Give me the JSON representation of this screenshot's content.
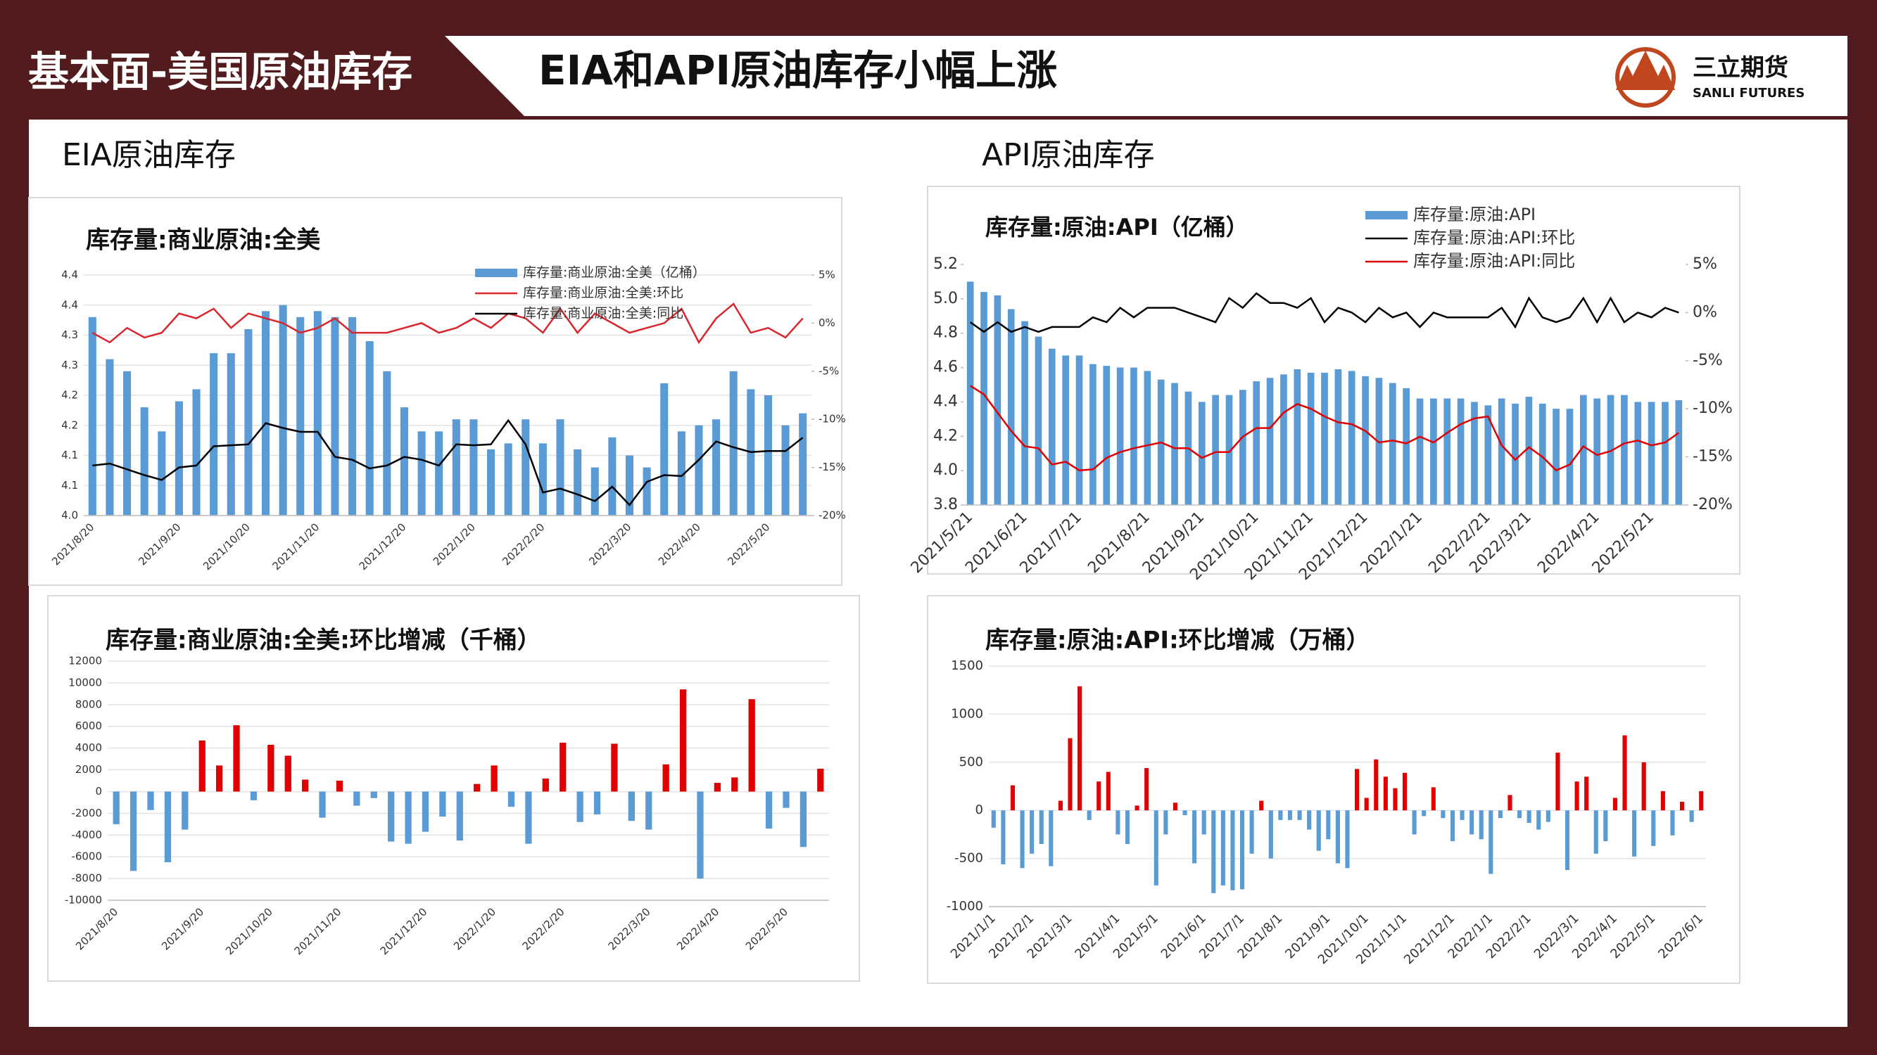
{
  "header": {
    "section": "基本面-美国原油库存",
    "title": "EIA和API原油库存小幅上涨",
    "logo_cn": "三立期货",
    "logo_en": "SANLI FUTURES"
  },
  "panels": [
    "EIA原油库存",
    "API原油库存"
  ],
  "chart_data": [
    {
      "type": "combo",
      "title": "库存量:商业原油:全美",
      "grid": true,
      "legend": "top-right",
      "categories": [
        "2021/8/20",
        null,
        null,
        null,
        null,
        "2021/9/20",
        null,
        null,
        null,
        "2021/10/20",
        null,
        null,
        null,
        "2021/11/20",
        null,
        null,
        null,
        null,
        "2021/12/20",
        null,
        null,
        null,
        "2022/1/20",
        null,
        null,
        null,
        "2022/2/20",
        null,
        null,
        null,
        null,
        "2022/3/20",
        null,
        null,
        null,
        "2022/4/20",
        null,
        null,
        null,
        "2022/5/20",
        null,
        null
      ],
      "ylim": [
        4.0,
        4.4
      ],
      "yticks": [
        {
          "value": 4,
          "label": "4.0"
        },
        {
          "value": 4.05,
          "label": "4.1"
        },
        4.1,
        {
          "value": 4.15,
          "label": "4.2"
        },
        4.2,
        {
          "value": 4.25,
          "label": "4.3"
        },
        4.3,
        {
          "value": 4.35,
          "label": "4.4"
        },
        4.4
      ],
      "y2lim": [
        -20,
        5
      ],
      "y2ticks": [
        {
          "value": 5,
          "label": "5%"
        },
        {
          "value": 0,
          "label": "0%"
        },
        {
          "value": -5,
          "label": "-5%"
        },
        {
          "value": -10,
          "label": "-10%"
        },
        {
          "value": -15,
          "label": "-15%"
        },
        {
          "value": -20,
          "label": "-20%"
        }
      ],
      "series": [
        {
          "name": "库存量:商业原油:全美（亿桶）",
          "type": "bar",
          "color": "#5b9bd5",
          "values": [
            4.33,
            4.26,
            4.24,
            4.18,
            4.14,
            4.19,
            4.21,
            4.27,
            4.27,
            4.31,
            4.34,
            4.35,
            4.33,
            4.34,
            4.33,
            4.33,
            4.29,
            4.24,
            4.18,
            4.14,
            4.14,
            4.16,
            4.16,
            4.11,
            4.12,
            4.16,
            4.12,
            4.16,
            4.11,
            4.08,
            4.13,
            4.1,
            4.08,
            4.22,
            4.14,
            4.15,
            4.16,
            4.24,
            4.21,
            4.2,
            4.15,
            4.17
          ]
        },
        {
          "name": "库存量:商业原油:全美:环比",
          "type": "line",
          "axis": "y2",
          "color": "#d9262c",
          "values": [
            -1,
            -2,
            -0.5,
            -1.5,
            -1,
            1,
            0.5,
            1.5,
            -0.5,
            1,
            0.5,
            0,
            -1,
            -0.5,
            0.5,
            -1,
            -1,
            -1,
            -0.5,
            0,
            -1,
            -0.5,
            0.5,
            -0.5,
            1,
            0.5,
            -1,
            1.5,
            -1,
            1,
            0,
            -1,
            -0.5,
            0,
            1.5,
            -2,
            0.5,
            2,
            -1,
            -0.5,
            -1.5,
            0.5
          ]
        },
        {
          "name": "库存量:商业原油:全美:同比",
          "type": "line",
          "axis": "y2",
          "color": "#000000",
          "values": [
            -14.8,
            -14.6,
            -15.2,
            -15.8,
            -16.3,
            -15,
            -14.8,
            -12.8,
            -12.7,
            -12.6,
            -10.4,
            -10.9,
            -11.3,
            -11.3,
            -13.9,
            -14.2,
            -15.1,
            -14.8,
            -13.9,
            -14.2,
            -14.8,
            -12.6,
            -12.7,
            -12.6,
            -10.1,
            -12.6,
            -17.6,
            -17.2,
            -17.8,
            -18.5,
            -17,
            -18.9,
            -16.5,
            -15.8,
            -15.9,
            -14.2,
            -12.3,
            -12.9,
            -13.4,
            -13.3,
            -13.3,
            -11.9
          ]
        }
      ]
    },
    {
      "type": "combo",
      "title": "库存量:原油:API（亿桶）",
      "grid": false,
      "legend": "top-right",
      "categories": [
        "2021/5/21",
        null,
        null,
        null,
        "2021/6/21",
        null,
        null,
        null,
        "2021/7/21",
        null,
        null,
        null,
        null,
        "2021/8/21",
        null,
        null,
        null,
        "2021/9/21",
        null,
        null,
        null,
        "2021/10/21",
        null,
        null,
        null,
        "2021/11/21",
        null,
        null,
        null,
        "2021/12/21",
        null,
        null,
        null,
        "2022/1/21",
        null,
        null,
        null,
        null,
        "2022/2/21",
        null,
        null,
        "2022/3/21",
        null,
        null,
        null,
        null,
        "2022/4/21",
        null,
        null,
        null,
        "2022/5/21",
        null,
        null
      ],
      "ylim": [
        3.8,
        5.2
      ],
      "yticks": [
        3.8,
        {
          "value": 4,
          "label": "4.0"
        },
        4.2,
        4.4,
        4.6,
        4.8,
        {
          "value": 5,
          "label": "5.0"
        },
        5.2
      ],
      "y2lim": [
        -20,
        5
      ],
      "y2ticks": [
        {
          "value": 5,
          "label": "5%"
        },
        {
          "value": 0,
          "label": "0%"
        },
        {
          "value": -5,
          "label": "-5%"
        },
        {
          "value": -10,
          "label": "-10%"
        },
        {
          "value": -15,
          "label": "-15%"
        },
        {
          "value": -20,
          "label": "-20%"
        }
      ],
      "series": [
        {
          "name": "库存量:原油:API",
          "type": "bar",
          "color": "#5b9bd5",
          "values": [
            5.1,
            5.04,
            5.02,
            4.94,
            4.87,
            4.78,
            4.71,
            4.67,
            4.67,
            4.62,
            4.61,
            4.6,
            4.6,
            4.58,
            4.53,
            4.51,
            4.46,
            4.4,
            4.44,
            4.44,
            4.47,
            4.52,
            4.54,
            4.56,
            4.59,
            4.57,
            4.57,
            4.59,
            4.58,
            4.55,
            4.54,
            4.51,
            4.48,
            4.42,
            4.42,
            4.42,
            4.42,
            4.4,
            4.38,
            4.42,
            4.39,
            4.43,
            4.39,
            4.36,
            4.36,
            4.44,
            4.42,
            4.44,
            4.44,
            4.4,
            4.4,
            4.4,
            4.41
          ]
        },
        {
          "name": "库存量:原油:API:环比",
          "type": "line",
          "axis": "y2",
          "color": "#000000",
          "values": [
            -1,
            -2,
            -1,
            -2,
            -1.5,
            -2,
            -1.5,
            -1.5,
            -1.5,
            -0.5,
            -1,
            0.5,
            -0.5,
            0.5,
            0.5,
            0.5,
            0,
            -0.5,
            -1,
            1.5,
            0.5,
            2,
            1,
            1,
            0.5,
            1.5,
            -1,
            0.5,
            0,
            -1,
            0.5,
            -0.5,
            0,
            -1.5,
            0,
            -0.5,
            -0.5,
            -0.5,
            -0.5,
            0.5,
            -1.5,
            1.5,
            -0.5,
            -1,
            -0.5,
            1.5,
            -1,
            1.5,
            -1,
            0,
            -0.5,
            0.5,
            0
          ]
        },
        {
          "name": "库存量:原油:API:同比",
          "type": "line",
          "axis": "y2",
          "color": "#e00000",
          "values": [
            -7.6,
            -8.5,
            -10.4,
            -12.3,
            -13.9,
            -14.1,
            -15.8,
            -15.5,
            -16.4,
            -16.3,
            -15.1,
            -14.5,
            -14.1,
            -13.8,
            -13.5,
            -14.1,
            -14.1,
            -15.1,
            -14.5,
            -14.5,
            -12.9,
            -12,
            -12,
            -10.4,
            -9.5,
            -10,
            -10.8,
            -11.4,
            -11.6,
            -12.3,
            -13.5,
            -13.3,
            -13.6,
            -12.9,
            -13.5,
            -12.5,
            -11.6,
            -11,
            -10.8,
            -13.8,
            -15.3,
            -14,
            -15,
            -16.4,
            -15.8,
            -13.9,
            -14.8,
            -14.4,
            -13.6,
            -13.3,
            -13.8,
            -13.5,
            -12.5
          ]
        }
      ]
    },
    {
      "type": "bar",
      "title": "库存量:商业原油:全美:环比增减（千桶）",
      "grid": true,
      "positive_color": "#e00000",
      "negative_color": "#5b9bd5",
      "categories": [
        "2021/8/20",
        null,
        null,
        null,
        null,
        "2021/9/20",
        null,
        null,
        null,
        "2021/10/20",
        null,
        null,
        null,
        "2021/11/20",
        null,
        null,
        null,
        null,
        "2021/12/20",
        null,
        null,
        null,
        "2022/1/20",
        null,
        null,
        null,
        "2022/2/20",
        null,
        null,
        null,
        null,
        "2022/3/20",
        null,
        null,
        null,
        "2022/4/20",
        null,
        null,
        null,
        "2022/5/20",
        null,
        null
      ],
      "ylim": [
        -10000,
        12000
      ],
      "yticks": [
        -10000,
        -8000,
        -6000,
        -4000,
        -2000,
        0,
        2000,
        4000,
        6000,
        8000,
        10000,
        12000
      ],
      "values": [
        -3000,
        -7300,
        -1700,
        -6500,
        -3500,
        4700,
        2400,
        6100,
        -800,
        4300,
        3300,
        1100,
        -2400,
        1000,
        -1300,
        -600,
        -4600,
        -4800,
        -3700,
        -2300,
        -4500,
        700,
        2400,
        -1400,
        -4800,
        1200,
        4500,
        -2800,
        -2100,
        4400,
        -2700,
        -3500,
        2500,
        9400,
        -8000,
        800,
        1300,
        8500,
        -3400,
        -1500,
        -5100,
        2100
      ]
    },
    {
      "type": "bar",
      "title": "库存量:原油:API:环比增减（万桶）",
      "grid": true,
      "positive_color": "#e00000",
      "negative_color": "#5b9bd5",
      "categories": [
        "2021/1/1",
        null,
        null,
        null,
        "2021/2/1",
        null,
        null,
        null,
        "2021/3/1",
        null,
        null,
        null,
        null,
        "2021/4/1",
        null,
        null,
        null,
        "2021/5/1",
        null,
        null,
        null,
        null,
        "2021/6/1",
        null,
        null,
        null,
        "2021/7/1",
        null,
        null,
        null,
        "2021/8/1",
        null,
        null,
        null,
        null,
        "2021/9/1",
        null,
        null,
        null,
        "2021/10/1",
        null,
        null,
        null,
        "2021/11/1",
        null,
        null,
        null,
        null,
        "2021/12/1",
        null,
        null,
        null,
        "2022/1/1",
        null,
        null,
        null,
        "2022/2/1",
        null,
        null,
        null,
        null,
        "2022/3/1",
        null,
        null,
        null,
        "2022/4/1",
        null,
        null,
        null,
        "2022/5/1",
        null,
        null,
        null,
        null,
        "2022/6/1"
      ],
      "ylim": [
        -1000,
        1500
      ],
      "yticks": [
        -1000,
        -500,
        0,
        500,
        1000,
        1500
      ],
      "values": [
        -180,
        -560,
        260,
        -600,
        -450,
        -350,
        -580,
        100,
        750,
        1290,
        -100,
        300,
        400,
        -250,
        -350,
        50,
        440,
        -780,
        -250,
        80,
        -50,
        -550,
        -250,
        -860,
        -780,
        -830,
        -820,
        -450,
        100,
        -500,
        -100,
        -100,
        -100,
        -200,
        -420,
        -300,
        -550,
        -600,
        430,
        130,
        530,
        350,
        230,
        390,
        -250,
        -60,
        240,
        -80,
        -320,
        -100,
        -250,
        -300,
        -660,
        -80,
        160,
        -80,
        -130,
        -200,
        -120,
        600,
        -620,
        300,
        350,
        -450,
        -320,
        130,
        780,
        -480,
        500,
        -370,
        200,
        -260,
        90,
        -120,
        200
      ]
    }
  ]
}
